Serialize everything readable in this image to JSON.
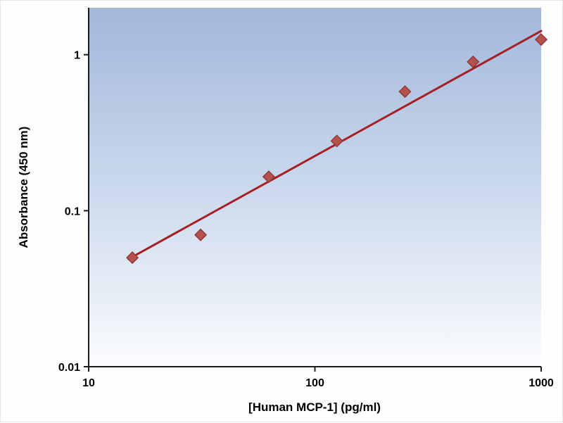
{
  "chart_data": {
    "type": "scatter",
    "title": "",
    "xlabel": "[Human MCP-1] (pg/ml)",
    "ylabel": "Absorbance (450 nm)",
    "x_scale": "log",
    "y_scale": "log",
    "xlim": [
      10,
      1000
    ],
    "ylim": [
      0.01,
      2
    ],
    "x_ticks": [
      10,
      100,
      1000
    ],
    "y_ticks": [
      0.01,
      0.1,
      1
    ],
    "grid": false,
    "legend": "none",
    "points": {
      "x": [
        15.6,
        31.25,
        62.5,
        125,
        250,
        500,
        1000
      ],
      "y": [
        0.05,
        0.07,
        0.165,
        0.28,
        0.58,
        0.9,
        1.25
      ]
    },
    "trend_line": {
      "x": [
        15,
        1000
      ],
      "y": [
        0.049,
        1.42
      ]
    },
    "colors": {
      "marker_fill": "#b5524e",
      "marker_stroke": "#8e3a37",
      "trend_line": "#a61f24",
      "axis": "#1a1a1a",
      "plot_bg_top": "#a2b7da",
      "plot_bg_mid": "#cfdcee",
      "plot_bg_bottom": "#fbfcfe"
    }
  }
}
